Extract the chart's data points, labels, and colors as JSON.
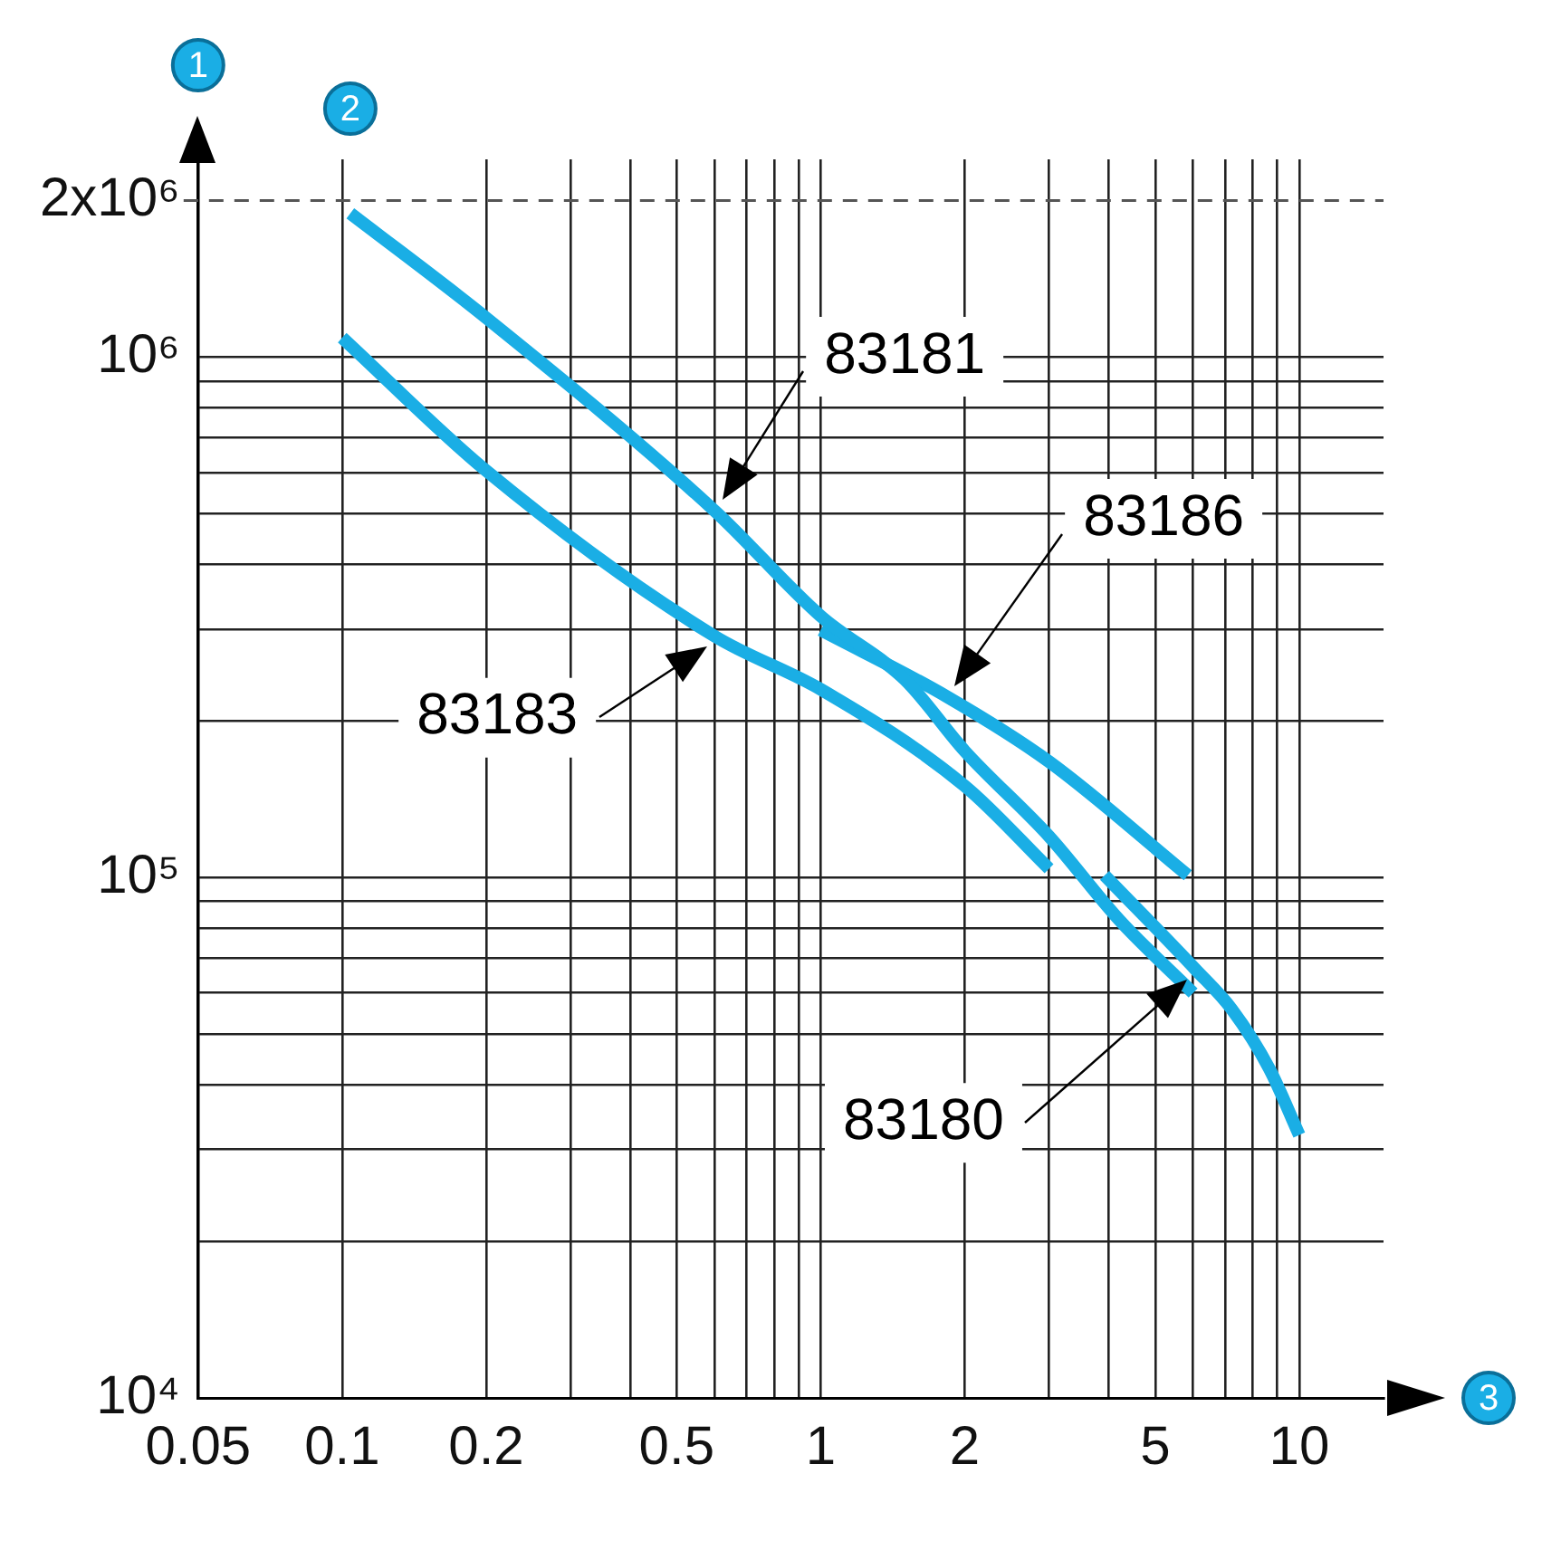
{
  "chart_data": {
    "type": "line",
    "xlabel": "3",
    "ylabel": "1",
    "annotations": [
      "2"
    ],
    "log": "xy",
    "grid": true,
    "legend": false,
    "marker": "none",
    "line_style": "solid",
    "xlim": [
      0.05,
      15
    ],
    "ylim": [
      10000,
      2400000
    ],
    "xticks": [
      0.05,
      0.1,
      0.2,
      {
        "value": 0.3,
        "label": null
      },
      {
        "value": 0.4,
        "label": null
      },
      0.5,
      {
        "value": 0.6,
        "label": null
      },
      {
        "value": 0.7,
        "label": null
      },
      {
        "value": 0.8,
        "label": null
      },
      {
        "value": 0.9,
        "label": null
      },
      1,
      2,
      {
        "value": 3,
        "label": null
      },
      {
        "value": 4,
        "label": null
      },
      5,
      {
        "value": 6,
        "label": null
      },
      {
        "value": 7,
        "label": null
      },
      {
        "value": 8,
        "label": null
      },
      {
        "value": 9,
        "label": null
      },
      10
    ],
    "yticks": [
      {
        "value": 10000,
        "label": "10⁴"
      },
      {
        "value": 20000,
        "label": null
      },
      {
        "value": 30000,
        "label": null
      },
      {
        "value": 40000,
        "label": null
      },
      {
        "value": 50000,
        "label": null
      },
      {
        "value": 60000,
        "label": null
      },
      {
        "value": 70000,
        "label": null
      },
      {
        "value": 80000,
        "label": null
      },
      {
        "value": 90000,
        "label": null
      },
      {
        "value": 100000,
        "label": "10⁵"
      },
      {
        "value": 200000,
        "label": null
      },
      {
        "value": 300000,
        "label": null
      },
      {
        "value": 400000,
        "label": null
      },
      {
        "value": 500000,
        "label": null
      },
      {
        "value": 600000,
        "label": null
      },
      {
        "value": 700000,
        "label": null
      },
      {
        "value": 800000,
        "label": null
      },
      {
        "value": 900000,
        "label": null
      },
      {
        "value": 1000000,
        "label": "10⁶"
      },
      {
        "value": 2000000,
        "label": "2x10⁶"
      }
    ],
    "ref_lines": [
      {
        "axis": "y",
        "value": 2000000,
        "line_style": "dashed",
        "color": "#555555"
      }
    ],
    "series": [
      {
        "name": "83181",
        "color": "#1aaee5",
        "x": [
          0.104,
          0.2,
          0.6,
          1,
          1.5,
          2,
          3,
          4.2,
          6
        ],
        "values": [
          1890000,
          1190000,
          507000,
          318000,
          240000,
          175000,
          120000,
          83000,
          60000
        ]
      },
      {
        "name": "83183",
        "color": "#1aaee5",
        "x": [
          0.1,
          0.2,
          0.6,
          1,
          2,
          3
        ],
        "values": [
          1090000,
          605000,
          291000,
          230000,
          150000,
          104000
        ]
      },
      {
        "name": "83186",
        "color": "#1aaee5",
        "x": [
          1,
          1.83,
          3,
          5.85
        ],
        "values": [
          299000,
          223000,
          167000,
          101000
        ]
      },
      {
        "name": "83180",
        "color": "#1aaee5",
        "x": [
          3.92,
          6.06,
          7.23,
          8.66,
          10
        ],
        "values": [
          101000,
          66700,
          55800,
          42900,
          32000
        ]
      }
    ]
  }
}
